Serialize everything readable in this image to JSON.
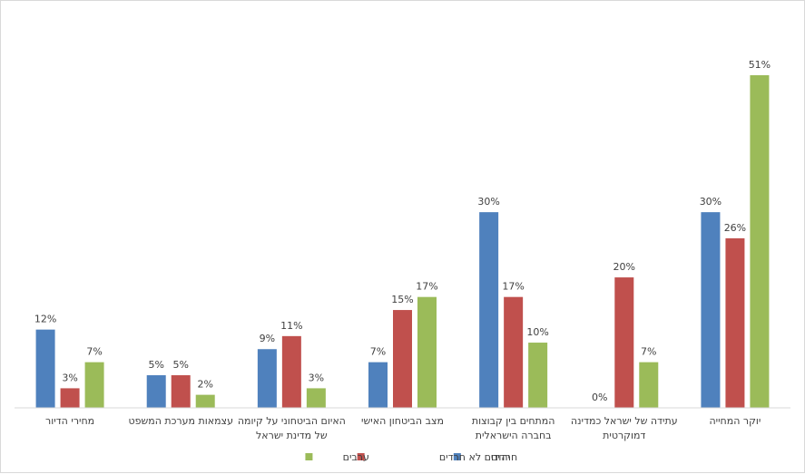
{
  "chart_data": {
    "type": "bar",
    "categories": [
      [
        "יוקר המחייה"
      ],
      [
        "עתידה של ישראל כמדינה",
        "דמוקרטית"
      ],
      [
        "המתחים בין קבוצות",
        "בחברה הישראלית"
      ],
      [
        "מצב הביטחון האישי"
      ],
      [
        "האיום הביטחוני על קיומה",
        "של מדינת ישראל"
      ],
      [
        "עצמאות מערכת המשפט"
      ],
      [
        "מחירי הדיור"
      ]
    ],
    "series": [
      {
        "name": "חרדים",
        "color": "#4f81bd",
        "values": [
          30,
          0,
          30,
          7,
          9,
          5,
          12
        ]
      },
      {
        "name": "יהודים לא חרדים",
        "color": "#c0504d",
        "values": [
          26,
          20,
          17,
          15,
          11,
          5,
          3
        ]
      },
      {
        "name": "ערבים",
        "color": "#9bbb59",
        "values": [
          51,
          7,
          10,
          17,
          3,
          2,
          7
        ]
      }
    ],
    "value_suffix": "%",
    "ylim": [
      0,
      51
    ],
    "order": "right-to-left",
    "grid": false,
    "legend": "bottom"
  }
}
